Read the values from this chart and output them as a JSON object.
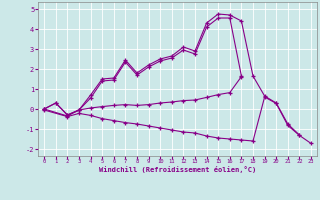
{
  "x": [
    0,
    1,
    2,
    3,
    4,
    5,
    6,
    7,
    8,
    9,
    10,
    11,
    12,
    13,
    14,
    15,
    16,
    17,
    18,
    19,
    20,
    21,
    22,
    23
  ],
  "line_curve": [
    0.0,
    0.3,
    -0.3,
    -0.05,
    0.7,
    1.5,
    1.55,
    2.45,
    1.8,
    2.2,
    2.5,
    2.65,
    3.1,
    2.9,
    4.3,
    4.75,
    4.7,
    4.4,
    1.65,
    0.65,
    0.3,
    -0.75,
    -1.3,
    null
  ],
  "line_upper": [
    0.0,
    0.3,
    -0.3,
    -0.05,
    0.55,
    1.4,
    1.45,
    2.35,
    1.7,
    2.1,
    2.4,
    2.55,
    2.95,
    2.75,
    4.1,
    4.55,
    4.55,
    1.65,
    null,
    null,
    null,
    null,
    null,
    null
  ],
  "line_mid": [
    0.0,
    null,
    -0.35,
    -0.05,
    0.05,
    0.12,
    0.18,
    0.22,
    0.18,
    0.22,
    0.3,
    0.35,
    0.42,
    0.45,
    0.58,
    0.72,
    0.82,
    1.62,
    null,
    null,
    null,
    null,
    null,
    null
  ],
  "line_low": [
    -0.05,
    null,
    -0.38,
    -0.22,
    -0.32,
    -0.48,
    -0.58,
    -0.68,
    -0.75,
    -0.85,
    -0.95,
    -1.05,
    -1.15,
    -1.2,
    -1.35,
    -1.45,
    -1.5,
    -1.55,
    -1.6,
    0.6,
    0.28,
    -0.82,
    -1.32,
    -1.72
  ],
  "color": "#880088",
  "bg_color": "#cce8e8",
  "grid_color": "#ffffff",
  "xlim": [
    -0.5,
    23.5
  ],
  "ylim": [
    -2.35,
    5.35
  ],
  "xlabel": "Windchill (Refroidissement éolien,°C)",
  "xticks": [
    0,
    1,
    2,
    3,
    4,
    5,
    6,
    7,
    8,
    9,
    10,
    11,
    12,
    13,
    14,
    15,
    16,
    17,
    18,
    19,
    20,
    21,
    22,
    23
  ],
  "yticks": [
    -2,
    -1,
    0,
    1,
    2,
    3,
    4,
    5
  ],
  "figw": 3.2,
  "figh": 2.0,
  "dpi": 100
}
